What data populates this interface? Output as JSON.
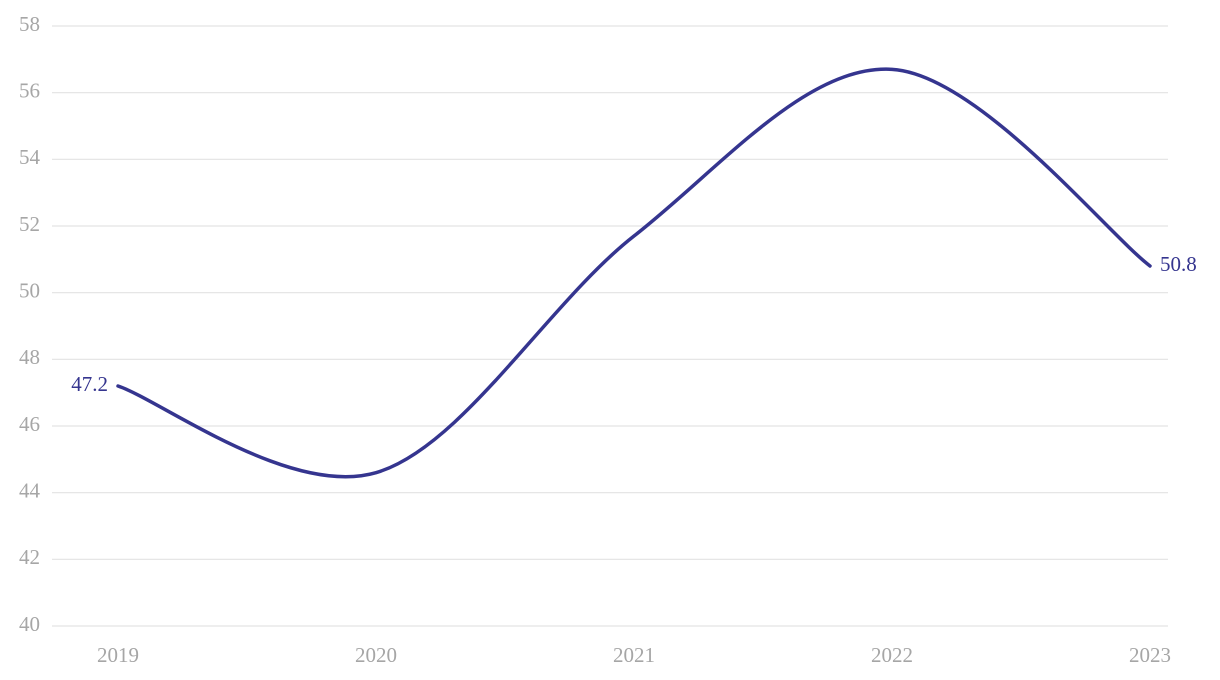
{
  "chart_data": {
    "type": "line",
    "categories": [
      "2019",
      "2020",
      "2021",
      "2022",
      "2023"
    ],
    "series": [
      {
        "color": "#35358f",
        "values": [
          47.2,
          44.6,
          51.7,
          56.7,
          50.8
        ]
      }
    ],
    "ylim": [
      40,
      58
    ],
    "yticks": [
      40,
      42,
      44,
      46,
      48,
      50,
      52,
      54,
      56,
      58
    ],
    "grid": true
  }
}
